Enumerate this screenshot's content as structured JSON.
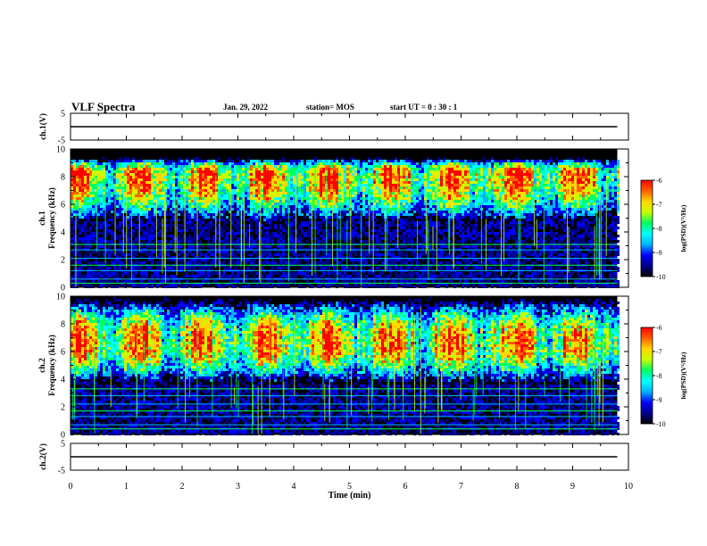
{
  "header": {
    "title": "VLF Spectra",
    "date": "Jan. 29, 2022",
    "station": "station= MOS",
    "start_ut": "start  UT =   0 : 30 : 1"
  },
  "colormap": [
    "#000000",
    "#00008b",
    "#0000ff",
    "#00b4ff",
    "#00ffff",
    "#00ff60",
    "#c8ff00",
    "#ffd700",
    "#ff6000",
    "#ff0000"
  ],
  "chart_data": [
    {
      "type": "line",
      "panel": "ch1-voltage",
      "ylabel": "ch.1(V)",
      "ylim": [
        -5,
        5
      ],
      "yticks": [
        "5",
        "-5"
      ],
      "xlim": [
        0,
        10
      ],
      "series": [
        {
          "x": [
            0,
            9.8
          ],
          "y": [
            0,
            0
          ]
        }
      ]
    },
    {
      "type": "heatmap",
      "panel": "ch1-spectrogram",
      "ylabel": "ch.1\nFrequency (kHz)",
      "ylim": [
        0,
        10
      ],
      "yticks": [
        "0",
        "2",
        "4",
        "6",
        "8",
        "10"
      ],
      "xlim": [
        0,
        10
      ],
      "data_end_min": 9.8,
      "band_center_khz": 8.3,
      "band_top_khz": 9.4,
      "band_bottom_khz": 4.8,
      "horizontal_lines_khz": [
        0.3,
        0.6,
        1.2,
        1.6,
        2.1,
        2.7,
        3.1
      ],
      "colorbar": {
        "label": "log(PSD)(V²/Hz)",
        "range": [
          -10,
          -6
        ],
        "ticks": [
          "-6",
          "-7",
          "-8",
          "-9",
          "-10"
        ]
      }
    },
    {
      "type": "heatmap",
      "panel": "ch2-spectrogram",
      "ylabel": "ch.2\nFrequency (kHz)",
      "ylim": [
        0,
        10
      ],
      "yticks": [
        "0",
        "2",
        "4",
        "6",
        "8",
        "10"
      ],
      "xlim": [
        0,
        10
      ],
      "data_end_min": 9.8,
      "band_center_khz": 6.8,
      "band_top_khz": 9.8,
      "band_bottom_khz": 3.8,
      "horizontal_lines_khz": [
        0.4,
        0.7,
        1.3,
        1.7,
        2.2,
        2.8,
        3.3
      ],
      "colorbar": {
        "label": "log(PSD)(V²/Hz)",
        "range": [
          -10,
          -6
        ],
        "ticks": [
          "-6",
          "-7",
          "-8",
          "-9",
          "-10"
        ]
      }
    },
    {
      "type": "line",
      "panel": "ch2-voltage",
      "ylabel": "ch.2(V)",
      "ylim": [
        -5,
        5
      ],
      "yticks": [
        "5",
        "-5"
      ],
      "xlim": [
        0,
        10
      ],
      "xlabel": "Time (min)",
      "xticks": [
        "0",
        "1",
        "2",
        "3",
        "4",
        "5",
        "6",
        "7",
        "8",
        "9",
        "10"
      ],
      "series": [
        {
          "x": [
            0,
            9.8
          ],
          "y": [
            0,
            0
          ]
        }
      ]
    }
  ]
}
